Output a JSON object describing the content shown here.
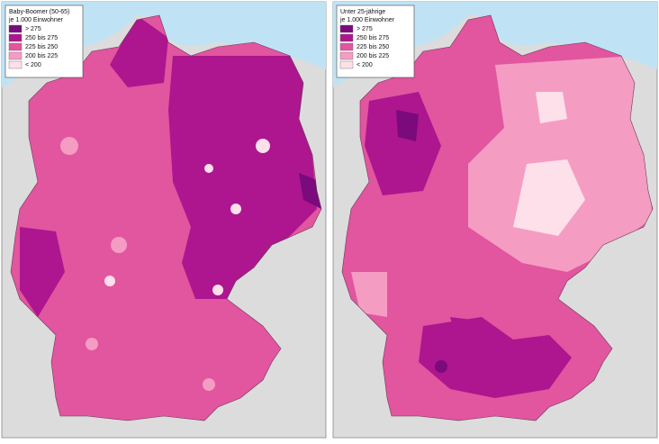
{
  "maps": [
    {
      "legend": {
        "title": "Baby-Boomer (50-65)",
        "subtitle": "je 1.000 Einwohner",
        "items": [
          {
            "label": "> 275",
            "color": "#7b0a7c"
          },
          {
            "label": "250 bis 275",
            "color": "#ad168e"
          },
          {
            "label": "225 bis 250",
            "color": "#e2559f"
          },
          {
            "label": "200 bis 225",
            "color": "#f59cc3"
          },
          {
            "label": "< 200",
            "color": "#fde0ea"
          }
        ]
      }
    },
    {
      "legend": {
        "title": "Unter 25-jährige",
        "subtitle": "je 1.000 Einwohner",
        "items": [
          {
            "label": "> 275",
            "color": "#7b0a7c"
          },
          {
            "label": "250 bis 275",
            "color": "#ad168e"
          },
          {
            "label": "225 bis 250",
            "color": "#e2559f"
          },
          {
            "label": "200 bis 225",
            "color": "#f59cc3"
          },
          {
            "label": "< 200",
            "color": "#fde0ea"
          }
        ]
      }
    }
  ]
}
